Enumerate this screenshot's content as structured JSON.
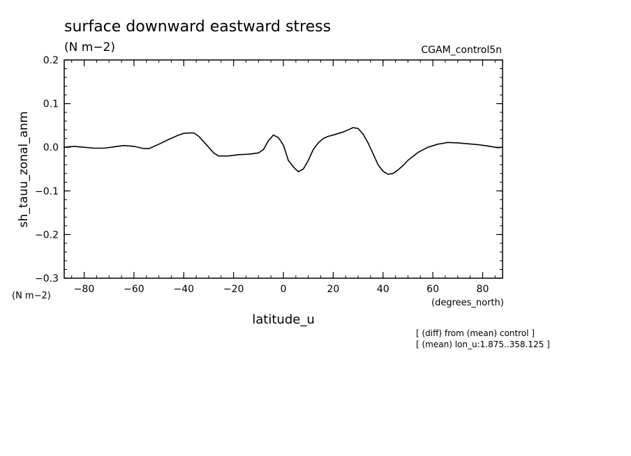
{
  "chart_data": {
    "type": "line",
    "title": "surface downward eastward stress",
    "subtitle": "(N m−2)",
    "run_label": "CGAM_control5n",
    "ylabel": "sh_tauu_zonal_anm",
    "yunits": "(N m−2)",
    "xlabel": "latitude_u",
    "xunits": "(degrees_north)",
    "xlim": [
      -88,
      88
    ],
    "ylim": [
      -0.3,
      0.2
    ],
    "x_ticks": [
      -80,
      -60,
      -40,
      -20,
      0,
      20,
      40,
      60,
      80
    ],
    "x_tick_labels": [
      "−80",
      "−60",
      "−40",
      "−20",
      "0",
      "20",
      "40",
      "60",
      "80"
    ],
    "y_ticks": [
      -0.3,
      -0.2,
      -0.1,
      0.0,
      0.1,
      0.2
    ],
    "y_tick_labels": [
      "−0.3",
      "−0.2",
      "−0.1",
      "0.0",
      "0.1",
      "0.2"
    ],
    "grid": false,
    "series": [
      {
        "x": [
          -88,
          -84,
          -80,
          -76,
          -72,
          -68,
          -64,
          -60,
          -56,
          -54,
          -50,
          -46,
          -42,
          -40,
          -36,
          -34,
          -30,
          -28,
          -26,
          -22,
          -18,
          -14,
          -10,
          -8,
          -6,
          -4,
          -2,
          0,
          2,
          4,
          6,
          8,
          10,
          12,
          14,
          16,
          18,
          20,
          24,
          26,
          28,
          30,
          32,
          34,
          36,
          38,
          40,
          42,
          44,
          46,
          48,
          50,
          54,
          58,
          62,
          66,
          70,
          74,
          78,
          82,
          86,
          88
        ],
        "y": [
          0.0,
          0.002,
          0.0,
          -0.002,
          -0.002,
          0.001,
          0.004,
          0.002,
          -0.003,
          -0.003,
          0.007,
          0.018,
          0.028,
          0.032,
          0.033,
          0.025,
          0.0,
          -0.013,
          -0.02,
          -0.02,
          -0.017,
          -0.016,
          -0.013,
          -0.005,
          0.015,
          0.028,
          0.022,
          0.005,
          -0.03,
          -0.045,
          -0.056,
          -0.05,
          -0.03,
          -0.005,
          0.01,
          0.02,
          0.025,
          0.028,
          0.035,
          0.04,
          0.045,
          0.043,
          0.03,
          0.01,
          -0.015,
          -0.04,
          -0.055,
          -0.062,
          -0.06,
          -0.052,
          -0.042,
          -0.03,
          -0.012,
          0.0,
          0.007,
          0.011,
          0.01,
          0.008,
          0.006,
          0.003,
          -0.001,
          0.0
        ]
      }
    ],
    "annotations": [
      "[ (diff) from (mean) control ]",
      "[ (mean) lon_u:1.875..358.125 ]"
    ]
  }
}
